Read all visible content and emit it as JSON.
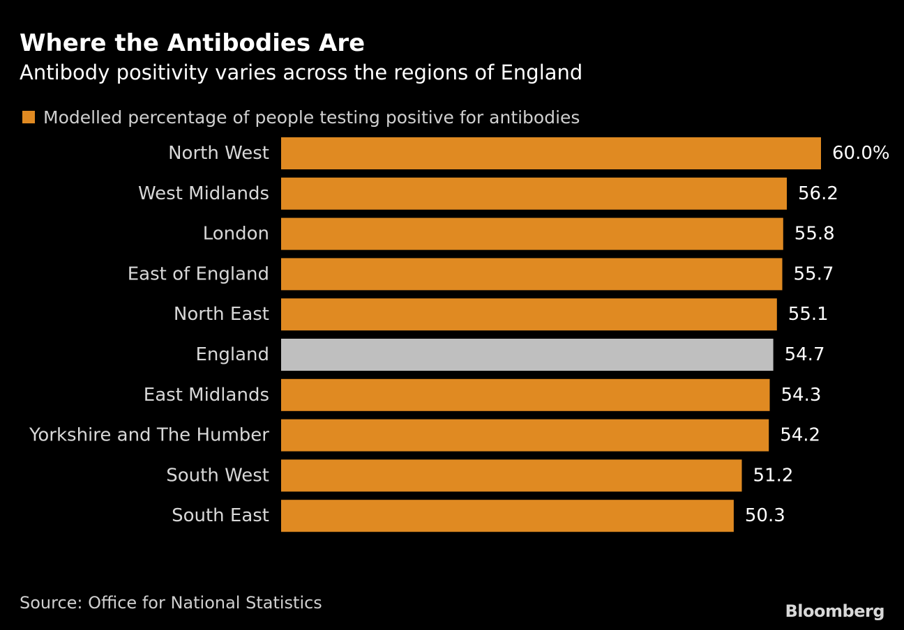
{
  "title": "Where the Antibodies Are",
  "subtitle": "Antibody positivity varies across the regions of England",
  "legend": {
    "label": "Modelled percentage of people testing positive for antibodies"
  },
  "source": "Source: Office for National Statistics",
  "logo": "Bloomberg",
  "colors": {
    "bar": "#e08a22",
    "highlight": "#bfbfbf",
    "background": "#000000"
  },
  "chart_data": {
    "type": "bar",
    "orientation": "horizontal",
    "categories": [
      "North West",
      "West Midlands",
      "London",
      "East of England",
      "North East",
      "England",
      "East Midlands",
      "Yorkshire and The Humber",
      "South West",
      "South East"
    ],
    "values": [
      60.0,
      56.2,
      55.8,
      55.7,
      55.1,
      54.7,
      54.3,
      54.2,
      51.2,
      50.3
    ],
    "value_labels": [
      "60.0%",
      "56.2",
      "55.8",
      "55.7",
      "55.1",
      "54.7",
      "54.3",
      "54.2",
      "51.2",
      "50.3"
    ],
    "highlight_category": "England",
    "series": [
      {
        "name": "Modelled percentage of people testing positive for antibodies",
        "values": [
          60.0,
          56.2,
          55.8,
          55.7,
          55.1,
          54.7,
          54.3,
          54.2,
          51.2,
          50.3
        ]
      }
    ],
    "xlim": [
      0,
      60
    ],
    "title": "Where the Antibodies Are",
    "subtitle": "Antibody positivity varies across the regions of England",
    "xlabel": "",
    "ylabel": "",
    "grid": false,
    "legend_position": "top-left"
  }
}
